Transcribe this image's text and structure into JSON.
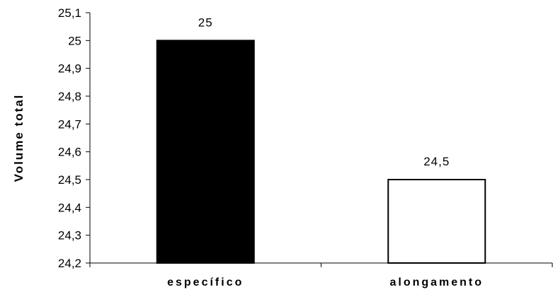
{
  "chart_data": {
    "type": "bar",
    "categories": [
      "específico",
      "alongamento"
    ],
    "values": [
      25,
      24.5
    ],
    "value_labels": [
      "25",
      "24,5"
    ],
    "title": "",
    "xlabel": "",
    "ylabel": "Volume total",
    "ylim": [
      24.2,
      25.1
    ],
    "y_ticks": [
      24.2,
      24.3,
      24.4,
      24.5,
      24.6,
      24.7,
      24.8,
      24.9,
      25,
      25.1
    ],
    "y_tick_labels": [
      "24,2",
      "24,3",
      "24,4",
      "24,5",
      "24,6",
      "24,7",
      "24,8",
      "24,9",
      "25",
      "25,1"
    ],
    "grid": false,
    "legend": "none",
    "bar_fills": [
      "#000000",
      "#ffffff"
    ],
    "bar_stroke": "#000000"
  }
}
